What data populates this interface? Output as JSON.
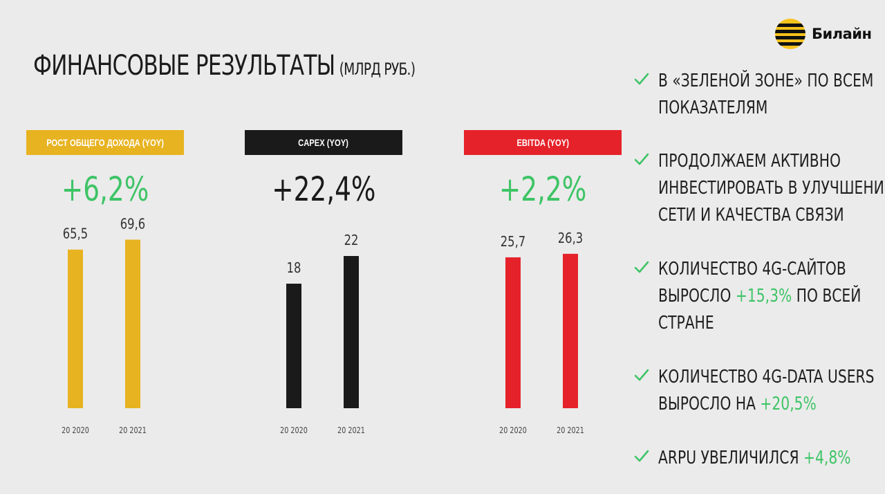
{
  "title": {
    "main": "ФИНАНСОВЫЕ РЕЗУЛЬТАТЫ",
    "unit": "(МЛРД РУБ.)"
  },
  "brand": {
    "name": "Билайн",
    "colors": {
      "yellow": "#e8b321",
      "black": "#1a1a1a",
      "red": "#e5222a",
      "green": "#3ec466"
    }
  },
  "chart_data": [
    {
      "type": "bar",
      "title": "РОСТ ОБЩЕГО ДОХОДА (YOY)",
      "growth": "+6,2%",
      "categories": [
        "20 2020",
        "20 2021"
      ],
      "values": [
        65.5,
        69.6
      ],
      "value_labels": [
        "65,5",
        "69,6"
      ],
      "ylim": [
        0,
        80
      ],
      "color": "#e8b321",
      "label_bg": "#e8b321",
      "label_color": "#ffffff",
      "growth_color": "#3ec466"
    },
    {
      "type": "bar",
      "title": "CAPEX (YOY)",
      "growth": "+22,4%",
      "categories": [
        "20 2020",
        "20 2021"
      ],
      "values": [
        18,
        22
      ],
      "value_labels": [
        "18",
        "22"
      ],
      "ylim": [
        0,
        28
      ],
      "color": "#1a1a1a",
      "label_bg": "#1a1a1a",
      "label_color": "#ffffff",
      "growth_color": "#1a1a1a"
    },
    {
      "type": "bar",
      "title": "EBITDA (YOY)",
      "growth": "+2,2%",
      "categories": [
        "20 2020",
        "20 2021"
      ],
      "values": [
        25.7,
        26.3
      ],
      "value_labels": [
        "25,7",
        "26,3"
      ],
      "ylim": [
        0,
        33
      ],
      "color": "#e5222a",
      "label_bg": "#e5222a",
      "label_color": "#ffffff",
      "growth_color": "#3ec466"
    }
  ],
  "bullets": [
    {
      "icon": "check-icon",
      "lines": [
        [
          {
            "t": "В «ЗЕЛЕНОЙ ЗОНЕ» ПО ВСЕМ"
          }
        ],
        [
          {
            "t": "ПОКАЗАТЕЛЯМ"
          }
        ]
      ]
    },
    {
      "icon": "check-icon",
      "lines": [
        [
          {
            "t": "ПРОДОЛЖАЕМ АКТИВНО"
          }
        ],
        [
          {
            "t": "ИНВЕСТИРОВАТЬ В УЛУЧШЕНИЕ"
          }
        ],
        [
          {
            "t": "СЕТИ И КАЧЕСТВА СВЯЗИ"
          }
        ]
      ]
    },
    {
      "icon": "check-icon",
      "lines": [
        [
          {
            "t": "КОЛИЧЕСТВО 4G-САЙТОВ"
          }
        ],
        [
          {
            "t": "ВЫРОСЛО "
          },
          {
            "t": "+15,3%",
            "hl": true
          },
          {
            "t": " ПО ВСЕЙ"
          }
        ],
        [
          {
            "t": "СТРАНЕ"
          }
        ]
      ]
    },
    {
      "icon": "check-icon",
      "lines": [
        [
          {
            "t": "КОЛИЧЕСТВО 4G-DATA USERS"
          }
        ],
        [
          {
            "t": "ВЫРОСЛО НА "
          },
          {
            "t": "+20,5%",
            "hl": true
          }
        ]
      ]
    },
    {
      "icon": "check-icon",
      "lines": [
        [
          {
            "t": "ARPU УВЕЛИЧИЛСЯ "
          },
          {
            "t": "+4,8%",
            "hl": true
          }
        ]
      ]
    }
  ]
}
